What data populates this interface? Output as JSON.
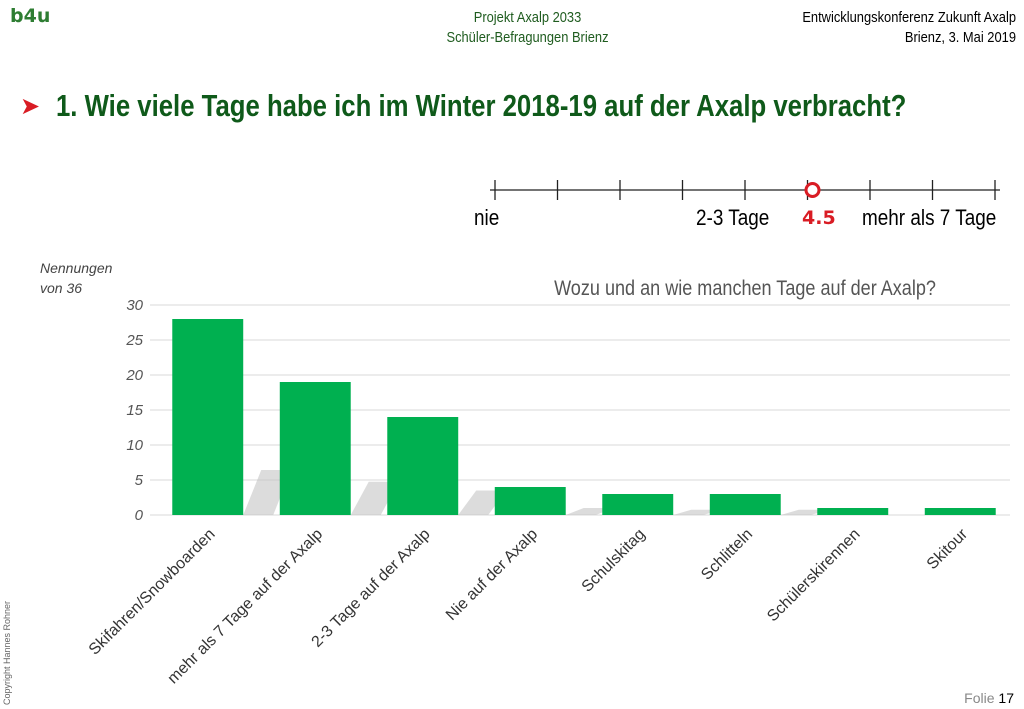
{
  "header": {
    "logo_text": "b4u",
    "project_line1": "Projekt Axalp 2033",
    "project_line2": "Schüler-Befragungen Brienz",
    "event_line1": "Entwicklungskonferenz Zukunft Axalp",
    "event_line2": "Brienz, 3. Mai 2019"
  },
  "question": {
    "bullet_icon": "arrowhead-bullet-icon",
    "text": "1. Wie viele Tage habe ich im Winter 2018-19 auf der Axalp verbracht?"
  },
  "scale": {
    "label_left": "nie",
    "label_mid": "2-3 Tage",
    "label_right": "mehr als 7 Tage",
    "value_label": "4.5",
    "marker_fraction": 0.635,
    "marker_color": "#d91c24"
  },
  "chart_data": {
    "type": "bar",
    "title": "Wozu und an wie manchen Tage auf der Axalp?",
    "ylabel_line1": "Nennungen",
    "ylabel_line2": "von 36",
    "xlabel": "",
    "categories": [
      "Skifahren/Snowboarden",
      "mehr als 7 Tage auf der Axalp",
      "2-3 Tage auf der Axalp",
      "Nie auf der Axalp",
      "Schulskitag",
      "Schlitteln",
      "Schülerskirennen",
      "Skitour"
    ],
    "values": [
      28,
      19,
      14,
      4,
      3,
      3,
      1,
      1
    ],
    "ylim": [
      0,
      30
    ],
    "yticks": [
      0,
      5,
      10,
      15,
      20,
      25,
      30
    ],
    "grid": true,
    "bar_color": "#00b050"
  },
  "footer": {
    "copyright": "Copyright Hannes Rohner",
    "slide_label": "Folie",
    "slide_number": "17"
  }
}
